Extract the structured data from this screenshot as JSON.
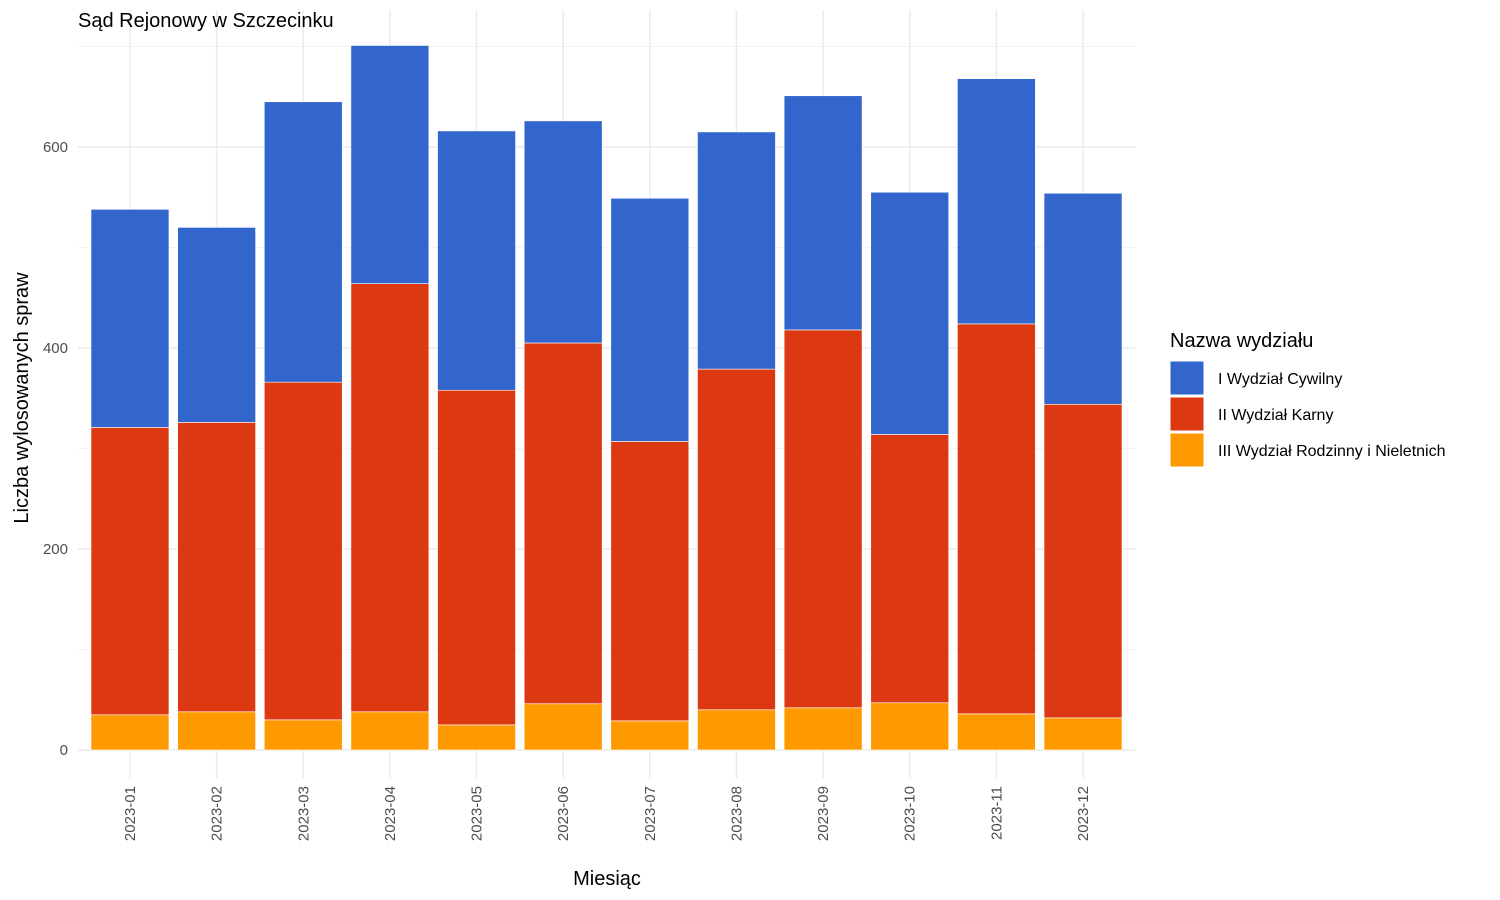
{
  "chart_data": {
    "type": "bar",
    "stacked": true,
    "title": "Sąd Rejonowy w Szczecinku",
    "xlabel": "Miesiąc",
    "ylabel": "Liczba wylosowanych spraw",
    "ylim": [
      0,
      700
    ],
    "y_ticks": [
      0,
      200,
      400,
      600
    ],
    "grid": true,
    "legend_title": "Nazwa wydziału",
    "legend_position": "right",
    "categories": [
      "2023-01",
      "2023-02",
      "2023-03",
      "2023-04",
      "2023-05",
      "2023-06",
      "2023-07",
      "2023-08",
      "2023-09",
      "2023-10",
      "2023-11",
      "2023-12"
    ],
    "series": [
      {
        "name": "III Wydział Rodzinny i Nieletnich",
        "color": "#ff9900",
        "values": [
          35,
          38,
          30,
          38,
          25,
          46,
          29,
          40,
          42,
          47,
          36,
          32
        ]
      },
      {
        "name": "II Wydział Karny",
        "color": "#dc3912",
        "values": [
          286,
          288,
          336,
          426,
          333,
          359,
          278,
          339,
          376,
          267,
          388,
          312
        ]
      },
      {
        "name": "I Wydział Cywilny",
        "color": "#3366cc",
        "values": [
          217,
          194,
          279,
          237,
          258,
          221,
          242,
          236,
          233,
          241,
          244,
          210
        ]
      }
    ],
    "legend_order": [
      "I Wydział Cywilny",
      "II Wydział Karny",
      "III Wydział Rodzinny i Nieletnich"
    ]
  }
}
